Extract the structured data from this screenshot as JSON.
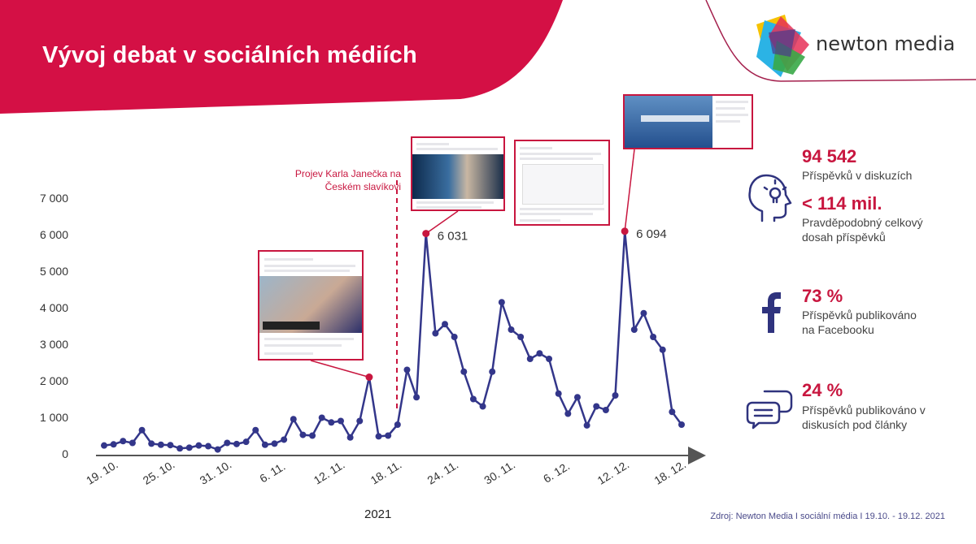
{
  "header": {
    "title": "Vývoj debat v sociálních médiích",
    "brand": "newton media",
    "colors": {
      "header_bg": "#d41045",
      "accent": "#c8163f",
      "line": "#33368a"
    }
  },
  "stats": [
    {
      "value": "94 542",
      "label": "Příspěvků v diskuzích",
      "icon": "head-lightbulb-icon"
    },
    {
      "value": "< 114 mil.",
      "label": "Pravděpodobný celkový dosah příspěvků",
      "icon": "head-lightbulb-icon"
    },
    {
      "value": "73 %",
      "label": "Příspěvků publikováno na Facebooku",
      "icon": "facebook-icon"
    },
    {
      "value": "24 %",
      "label": "Příspěvků publikováno v diskusích pod články",
      "icon": "chat-bubbles-icon"
    }
  ],
  "annotation": "Projev Karla Janečka na Českém slavíkovi",
  "year_label": "2021",
  "source": "Zdroj: Newton Media  I  sociální média  I  19.10. - 19.12. 2021",
  "chart_data": {
    "type": "line",
    "x_start": "19. 10. 2021",
    "x_end": "19. 12. 2021",
    "tick_labels": [
      "19. 10.",
      "25. 10.",
      "31. 10.",
      "6. 11.",
      "12. 11.",
      "18. 11.",
      "24. 11.",
      "30. 11.",
      "6. 12.",
      "12. 12.",
      "18. 12."
    ],
    "y_ticks": [
      "0",
      "1 000",
      "2 000",
      "3 000",
      "4 000",
      "5 000",
      "6 000",
      "7 000"
    ],
    "ylim": [
      0,
      7000
    ],
    "values": [
      230,
      260,
      350,
      300,
      650,
      280,
      250,
      240,
      150,
      170,
      230,
      210,
      120,
      300,
      270,
      330,
      650,
      250,
      280,
      390,
      950,
      520,
      500,
      990,
      860,
      900,
      450,
      900,
      2100,
      480,
      500,
      800,
      2300,
      1550,
      6031,
      3300,
      3550,
      3200,
      2250,
      1500,
      1300,
      2250,
      4150,
      3400,
      3200,
      2600,
      2750,
      2600,
      1650,
      1100,
      1550,
      780,
      1300,
      1200,
      1600,
      6094,
      3400,
      3850,
      3200,
      2850,
      1150,
      800
    ],
    "point_labels": [
      {
        "index": 34,
        "text": "6 031"
      },
      {
        "index": 55,
        "text": "6 094"
      }
    ],
    "highlight_indices": [
      28,
      34,
      55
    ]
  }
}
